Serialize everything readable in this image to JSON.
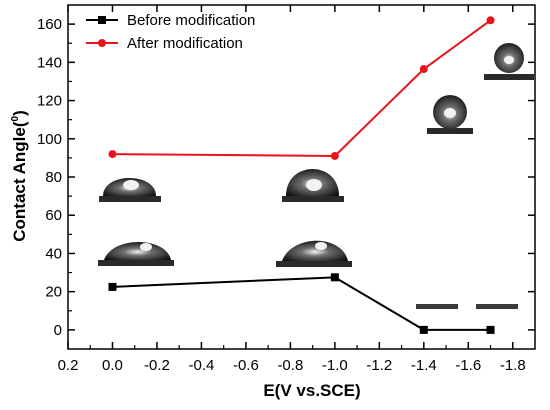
{
  "chart_data": {
    "type": "line",
    "xlabel": "E(V vs.SCE)",
    "ylabel_main": "Contact Angle(",
    "ylabel_sup": "0",
    "ylabel_close": ")",
    "x_reversed": true,
    "xlim": [
      0.2,
      -1.9
    ],
    "ylim": [
      -10,
      170
    ],
    "xticks": [
      "0.2",
      "0.0",
      "-0.2",
      "-0.4",
      "-0.6",
      "-0.8",
      "-1.0",
      "-1.2",
      "-1.4",
      "-1.6",
      "-1.8"
    ],
    "yticks": [
      "0",
      "20",
      "40",
      "60",
      "80",
      "100",
      "120",
      "140",
      "160"
    ],
    "legend_position": "top-left",
    "series": [
      {
        "name": "Before modification",
        "color": "#000000",
        "marker": "square",
        "x": [
          0.0,
          -1.0,
          -1.4,
          -1.7
        ],
        "y": [
          22.5,
          27.5,
          0,
          0
        ]
      },
      {
        "name": "After modification",
        "color": "#e8141c",
        "marker": "circle",
        "x": [
          0.0,
          -1.0,
          -1.4,
          -1.7
        ],
        "y": [
          92,
          91,
          136.5,
          162
        ]
      }
    ]
  }
}
